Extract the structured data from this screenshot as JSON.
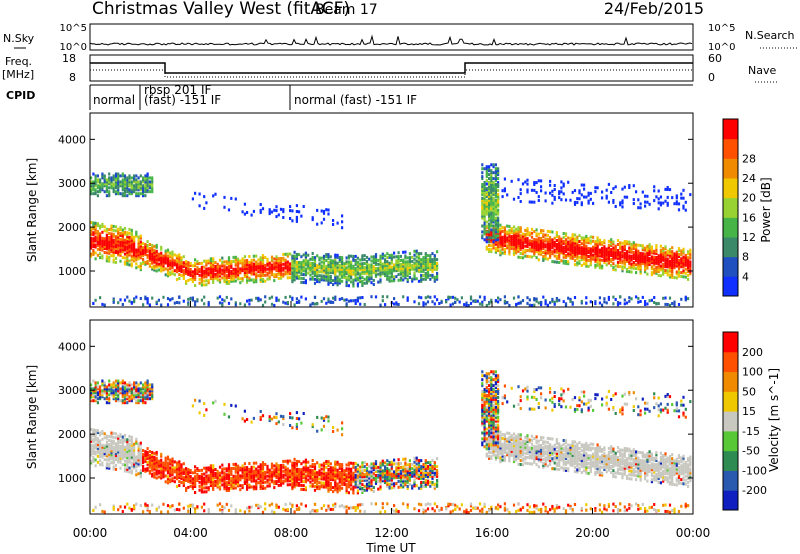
{
  "header": {
    "station": "Christmas Valley West (fitACF)",
    "beam": "Beam 17",
    "date": "24/Feb/2015"
  },
  "panels": {
    "nsky_label": "N.Sky",
    "nsearch_label": "N.Search",
    "nsky_ticks": [
      "10^5",
      "10^0"
    ],
    "nsearch_ticks": [
      "10^5",
      "10^0"
    ],
    "freq_label": "Freq.",
    "freq_unit": "[MHz]",
    "freq_ticks": [
      "18",
      "8"
    ],
    "nave_label": "Nave",
    "nave_ticks": [
      "60",
      "0"
    ],
    "cpid_label": "CPID",
    "cpid_segments": [
      "normal",
      "rbsp 201 IF",
      "(fast) -151 IF",
      "normal (fast) -151 IF"
    ]
  },
  "chart_data": [
    {
      "type": "heatmap",
      "name": "power",
      "ylabel": "Slant Range [km]",
      "yticks": [
        1000,
        2000,
        3000,
        4000
      ],
      "ylim": [
        180,
        4600
      ],
      "xlim": [
        0,
        24
      ],
      "colorbar_label": "Power [dB]",
      "colorbar_ticks": [
        4,
        8,
        12,
        16,
        20,
        24,
        28
      ],
      "colorbar_colors": [
        "#1030ff",
        "#2050c0",
        "#3a8a6a",
        "#46b446",
        "#98d232",
        "#f0c800",
        "#f08a00",
        "#ff5000",
        "#ff0000"
      ]
    },
    {
      "type": "heatmap",
      "name": "velocity",
      "ylabel": "Slant Range [km]",
      "yticks": [
        1000,
        2000,
        3000,
        4000
      ],
      "ylim": [
        180,
        4600
      ],
      "xlim": [
        0,
        24
      ],
      "xlabel": "Time UT",
      "xticks": [
        "00:00",
        "04:00",
        "08:00",
        "12:00",
        "16:00",
        "20:00",
        "00:00"
      ],
      "colorbar_label": "Velocity [m s^-1]",
      "colorbar_ticks": [
        200,
        100,
        50,
        15,
        -15,
        -50,
        -100,
        -200
      ],
      "colorbar_colors": [
        "#1020c0",
        "#2a5ab0",
        "#2e8c52",
        "#58c836",
        "#c8c8c0",
        "#f0c800",
        "#f08a00",
        "#ff5000",
        "#ff0000"
      ]
    }
  ],
  "colors": {
    "ground": "#c8c8c0"
  }
}
